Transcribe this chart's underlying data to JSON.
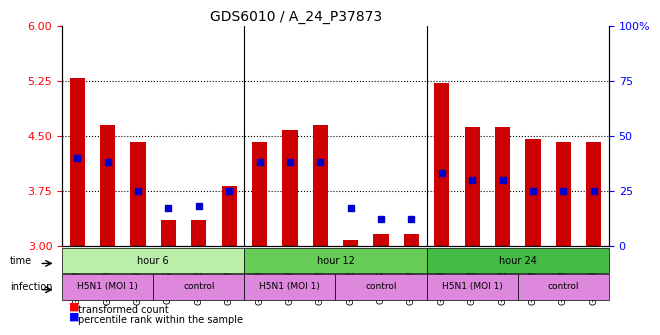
{
  "title": "GDS6010 / A_24_P37873",
  "samples": [
    "GSM1626004",
    "GSM1626005",
    "GSM1626006",
    "GSM1625995",
    "GSM1625996",
    "GSM1625997",
    "GSM1626007",
    "GSM1626008",
    "GSM1626009",
    "GSM1625998",
    "GSM1625999",
    "GSM1626000",
    "GSM1626010",
    "GSM1626011",
    "GSM1626012",
    "GSM1626001",
    "GSM1626002",
    "GSM1626003"
  ],
  "red_values": [
    5.28,
    4.65,
    4.42,
    3.35,
    3.35,
    3.82,
    4.42,
    4.58,
    4.65,
    3.08,
    3.16,
    3.16,
    5.22,
    4.62,
    4.62,
    4.45,
    4.42,
    4.42
  ],
  "blue_percentiles": [
    40,
    38,
    25,
    17,
    18,
    25,
    38,
    38,
    38,
    17,
    12,
    12,
    33,
    30,
    30,
    25,
    25,
    25
  ],
  "y_min": 3.0,
  "y_max": 6.0,
  "y_ticks_left": [
    3,
    3.75,
    4.5,
    5.25,
    6
  ],
  "y_ticks_right": [
    0,
    25,
    50,
    75,
    100
  ],
  "bar_color": "#cc0000",
  "dot_color": "#0000cc",
  "time_groups": [
    {
      "label": "hour 6",
      "start": 0,
      "end": 6,
      "color": "#aaddaa"
    },
    {
      "label": "hour 12",
      "start": 6,
      "end": 12,
      "color": "#66cc66"
    },
    {
      "label": "hour 24",
      "start": 12,
      "end": 18,
      "color": "#33aa33"
    }
  ],
  "infection_groups": [
    {
      "label": "H5N1 (MOI 1)",
      "start": 0,
      "end": 3,
      "color": "#dd88dd"
    },
    {
      "label": "control",
      "start": 3,
      "end": 6,
      "color": "#dd88dd"
    },
    {
      "label": "H5N1 (MOI 1)",
      "start": 6,
      "end": 9,
      "color": "#dd88dd"
    },
    {
      "label": "control",
      "start": 9,
      "end": 12,
      "color": "#dd88dd"
    },
    {
      "label": "H5N1 (MOI 1)",
      "start": 12,
      "end": 15,
      "color": "#dd88dd"
    },
    {
      "label": "control",
      "start": 15,
      "end": 18,
      "color": "#dd88dd"
    }
  ],
  "time_row_colors": [
    "#bbeeaa",
    "#88dd66",
    "#44bb44"
  ],
  "infection_row_color": "#dd99dd",
  "grid_color": "#aaaaaa"
}
